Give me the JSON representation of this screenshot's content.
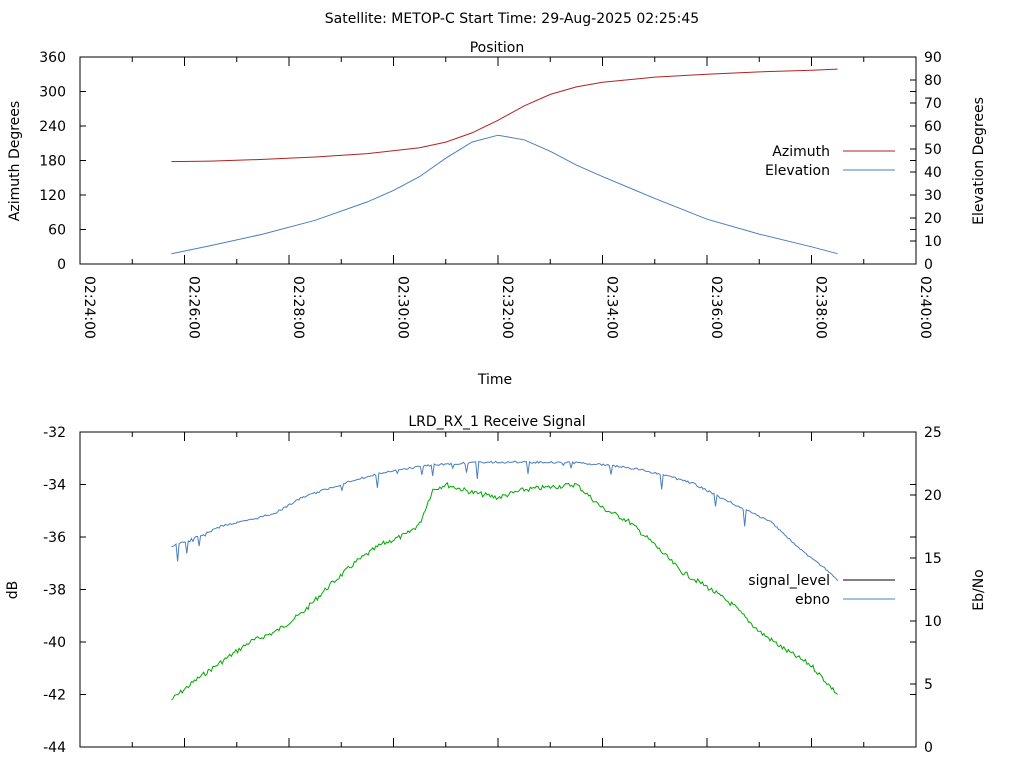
{
  "header": {
    "title": "Satellite: METOP-C    Start Time: 29-Aug-2025 02:25:45"
  },
  "chart_data": [
    {
      "type": "line",
      "title": "Position",
      "xlabel": "Time",
      "ylabel": "Azimuth Degrees",
      "y2label": "Elevation Degrees",
      "xlim": [
        "02:24:00",
        "02:40:00"
      ],
      "x_ticks": [
        "02:24:00",
        "02:26:00",
        "02:28:00",
        "02:30:00",
        "02:32:00",
        "02:34:00",
        "02:36:00",
        "02:38:00",
        "02:40:00"
      ],
      "ylim": [
        0,
        360
      ],
      "y_ticks": [
        "0",
        "60",
        "120",
        "180",
        "240",
        "300",
        "360"
      ],
      "y2lim": [
        0,
        90
      ],
      "y2_ticks": [
        "0",
        "10",
        "20",
        "30",
        "40",
        "50",
        "60",
        "70",
        "80",
        "90"
      ],
      "legend_position": "right",
      "grid": false,
      "series": [
        {
          "name": "Azimuth",
          "axis": "left",
          "color": "#b22222",
          "x": [
            "02:25:45",
            "02:26:30",
            "02:27:30",
            "02:28:30",
            "02:29:30",
            "02:30:30",
            "02:31:00",
            "02:31:30",
            "02:32:00",
            "02:32:30",
            "02:33:00",
            "02:33:30",
            "02:34:00",
            "02:35:00",
            "02:36:00",
            "02:37:00",
            "02:38:00",
            "02:38:30"
          ],
          "values": [
            178,
            179,
            182,
            186,
            192,
            202,
            212,
            228,
            250,
            275,
            295,
            308,
            316,
            325,
            330,
            334,
            337,
            339
          ]
        },
        {
          "name": "Elevation",
          "axis": "right",
          "color": "#4a7fbf",
          "x": [
            "02:25:45",
            "02:26:30",
            "02:27:30",
            "02:28:30",
            "02:29:30",
            "02:30:00",
            "02:30:30",
            "02:31:00",
            "02:31:30",
            "02:32:00",
            "02:32:30",
            "02:33:00",
            "02:33:30",
            "02:34:00",
            "02:35:00",
            "02:36:00",
            "02:37:00",
            "02:38:00",
            "02:38:30"
          ],
          "values": [
            4.5,
            8,
            13,
            19,
            27,
            32,
            38,
            46,
            53,
            56,
            54,
            49,
            43,
            38,
            28.5,
            19.5,
            13,
            7.5,
            4.5
          ]
        }
      ]
    },
    {
      "type": "line",
      "title": "LRD_RX_1 Receive Signal",
      "ylabel": "dB",
      "y2label": "Eb/No",
      "xlim": [
        "02:24:00",
        "02:40:00"
      ],
      "ylim": [
        -44,
        -32
      ],
      "y_ticks": [
        "-44",
        "-42",
        "-40",
        "-38",
        "-36",
        "-34",
        "-32"
      ],
      "y2lim": [
        0,
        25
      ],
      "y2_ticks": [
        "0",
        "5",
        "10",
        "15",
        "20",
        "25"
      ],
      "legend_position": "right",
      "grid": false,
      "series": [
        {
          "name": "signal_level",
          "axis": "left",
          "color": "#00aa00",
          "x": [
            "02:25:45",
            "02:26:15",
            "02:26:45",
            "02:27:15",
            "02:27:45",
            "02:28:15",
            "02:28:45",
            "02:29:15",
            "02:29:45",
            "02:30:15",
            "02:30:30",
            "02:30:45",
            "02:31:00",
            "02:31:30",
            "02:32:00",
            "02:32:30",
            "02:33:00",
            "02:33:30",
            "02:34:00",
            "02:34:30",
            "02:35:00",
            "02:35:30",
            "02:36:00",
            "02:36:30",
            "02:37:00",
            "02:37:30",
            "02:38:00",
            "02:38:30"
          ],
          "values": [
            -42.2,
            -41.4,
            -40.7,
            -40.0,
            -39.6,
            -38.9,
            -37.9,
            -37.0,
            -36.3,
            -35.9,
            -35.5,
            -34.2,
            -34.0,
            -34.3,
            -34.5,
            -34.2,
            -34.1,
            -34.0,
            -34.9,
            -35.4,
            -36.3,
            -37.3,
            -37.9,
            -38.6,
            -39.6,
            -40.3,
            -40.9,
            -42.0
          ]
        },
        {
          "name": "ebno",
          "axis": "right",
          "color": "#4a7fbf",
          "x": [
            "02:25:45",
            "02:26:15",
            "02:26:45",
            "02:27:15",
            "02:27:45",
            "02:28:15",
            "02:28:45",
            "02:29:15",
            "02:29:45",
            "02:30:15",
            "02:30:45",
            "02:31:15",
            "02:31:45",
            "02:32:15",
            "02:32:45",
            "02:33:15",
            "02:33:45",
            "02:34:15",
            "02:34:45",
            "02:35:15",
            "02:35:45",
            "02:36:15",
            "02:36:45",
            "02:37:15",
            "02:37:45",
            "02:38:15",
            "02:38:30"
          ],
          "values": [
            15.9,
            16.7,
            17.6,
            18.0,
            18.6,
            19.8,
            20.5,
            21.2,
            21.7,
            22.1,
            22.4,
            22.5,
            22.6,
            22.6,
            22.6,
            22.6,
            22.5,
            22.3,
            22.0,
            21.5,
            20.9,
            19.8,
            18.8,
            17.8,
            15.8,
            14.2,
            13.2
          ]
        }
      ]
    }
  ]
}
